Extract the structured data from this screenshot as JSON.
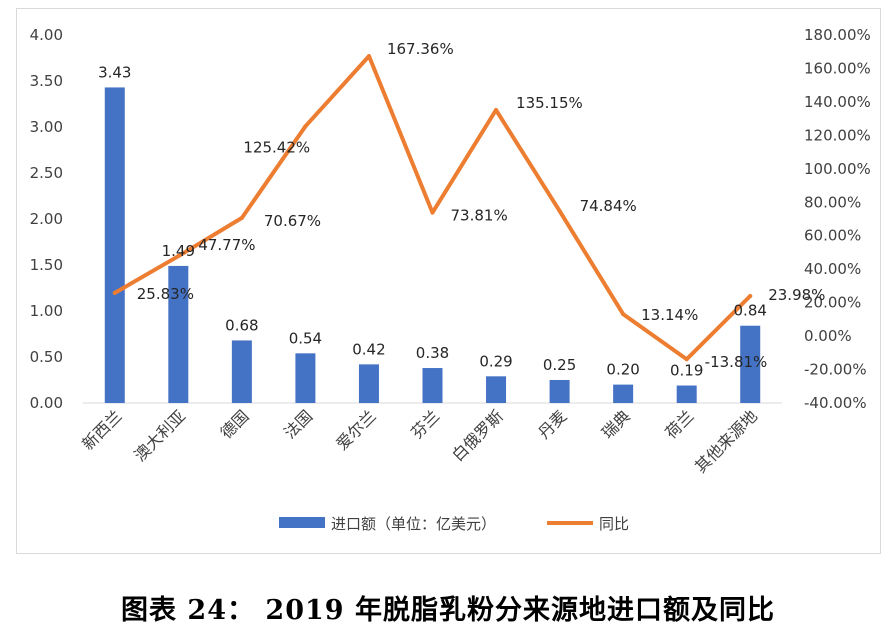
{
  "caption": "图表 24：  2019 年脱脂乳粉分来源地进口额及同比",
  "chart_data": {
    "type": "bar+line",
    "categories": [
      "新西兰",
      "澳大利亚",
      "德国",
      "法国",
      "爱尔兰",
      "芬兰",
      "白俄罗斯",
      "丹麦",
      "瑞典",
      "荷兰",
      "其他来源地"
    ],
    "series": [
      {
        "name": "进口额（单位：亿美元）",
        "type": "bar",
        "axis": "left",
        "color": "#4472C4",
        "values": [
          3.43,
          1.49,
          0.68,
          0.54,
          0.42,
          0.38,
          0.29,
          0.25,
          0.2,
          0.19,
          0.84
        ],
        "labels": [
          "3.43",
          "1.49",
          "0.68",
          "0.54",
          "0.42",
          "0.38",
          "0.29",
          "0.25",
          "0.20",
          "0.19",
          "0.84"
        ]
      },
      {
        "name": "同比",
        "type": "line",
        "axis": "right",
        "color": "#ED7D31",
        "values": [
          25.83,
          47.77,
          70.67,
          125.42,
          167.36,
          73.81,
          135.15,
          74.84,
          13.14,
          -13.81,
          23.98
        ],
        "labels": [
          "25.83%",
          "47.77%",
          "70.67%",
          "125.42%",
          "167.36%",
          "73.81%",
          "135.15%",
          "74.84%",
          "13.14%",
          "-13.81%",
          "23.98%"
        ]
      }
    ],
    "y_left": {
      "min": 0,
      "max": 4,
      "ticks": [
        "0.00",
        "0.50",
        "1.00",
        "1.50",
        "2.00",
        "2.50",
        "3.00",
        "3.50",
        "4.00"
      ]
    },
    "y_right": {
      "min": -40,
      "max": 180,
      "ticks": [
        "-40.00%",
        "-20.00%",
        "0.00%",
        "20.00%",
        "40.00%",
        "60.00%",
        "80.00%",
        "100.00%",
        "120.00%",
        "140.00%",
        "160.00%",
        "180.00%"
      ]
    },
    "grid": false,
    "legend": "bottom"
  }
}
